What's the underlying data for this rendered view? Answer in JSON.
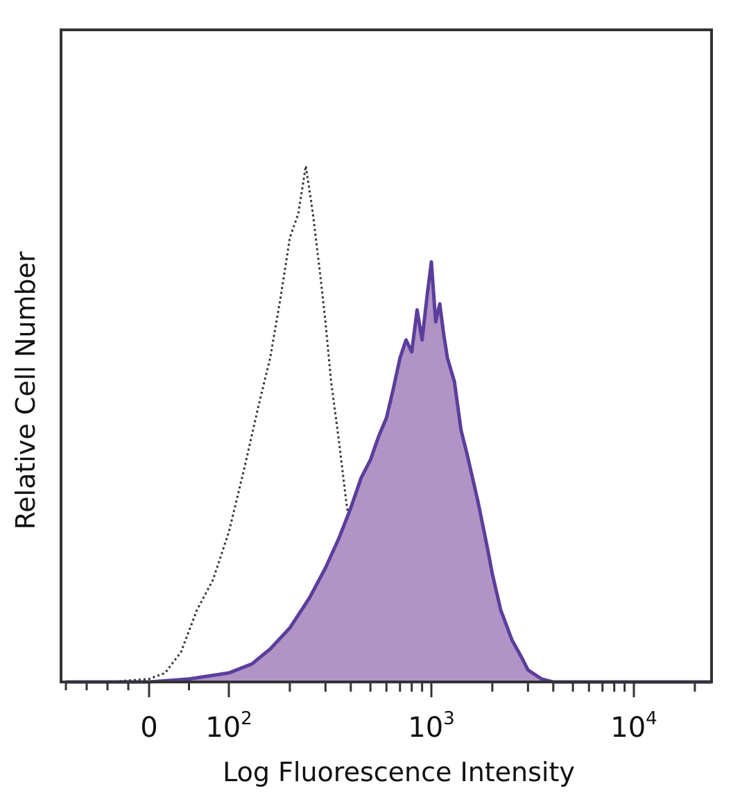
{
  "chart_data": {
    "type": "area",
    "title": "",
    "xlabel": "Log Fluorescence Intensity",
    "ylabel": "Relative Cell Number",
    "x_scale": "biexponential",
    "xlim": [
      -200,
      25000
    ],
    "ylim": [
      0,
      100
    ],
    "grid": false,
    "legend": "none",
    "x_ticks": [
      {
        "value": 0,
        "base": "0",
        "exp": ""
      },
      {
        "value": 100,
        "base": "10",
        "exp": "2"
      },
      {
        "value": 1000,
        "base": "10",
        "exp": "3"
      },
      {
        "value": 10000,
        "base": "10",
        "exp": "4"
      }
    ],
    "series": [
      {
        "style": "dotted",
        "color": "#333333",
        "x": [
          -200,
          -100,
          0,
          20,
          40,
          60,
          80,
          100,
          120,
          140,
          160,
          180,
          200,
          220,
          240,
          260,
          280,
          300,
          320,
          350,
          380,
          420,
          460,
          500,
          550,
          600,
          700,
          800,
          900,
          1000,
          1500
        ],
        "y": [
          0,
          0,
          0.5,
          1.5,
          5,
          12,
          17,
          25,
          36,
          46,
          54,
          64,
          74,
          78,
          86,
          78,
          69,
          60,
          50,
          40,
          30,
          20,
          15,
          10,
          5,
          2,
          0.5,
          0,
          0,
          0,
          0
        ]
      },
      {
        "style": "filled",
        "color": "#5b3e9c",
        "fill": "#b194c6",
        "x": [
          -200,
          -100,
          0,
          50,
          100,
          130,
          160,
          200,
          250,
          300,
          350,
          400,
          450,
          500,
          550,
          600,
          650,
          700,
          750,
          800,
          850,
          900,
          950,
          1000,
          1050,
          1100,
          1150,
          1200,
          1300,
          1400,
          1500,
          1700,
          1900,
          2000,
          2200,
          2500,
          2800,
          3000,
          3500,
          4000,
          5000,
          25000
        ],
        "y": [
          0,
          0,
          0,
          0.5,
          1.5,
          3,
          5.5,
          9,
          14,
          19,
          24,
          29,
          34,
          37,
          41,
          44,
          49,
          54,
          57,
          55,
          62,
          57,
          64,
          70,
          60,
          63,
          58,
          54,
          50,
          42,
          38,
          30,
          22,
          18,
          12,
          7,
          4,
          2,
          0.5,
          0,
          0,
          0
        ]
      }
    ]
  }
}
